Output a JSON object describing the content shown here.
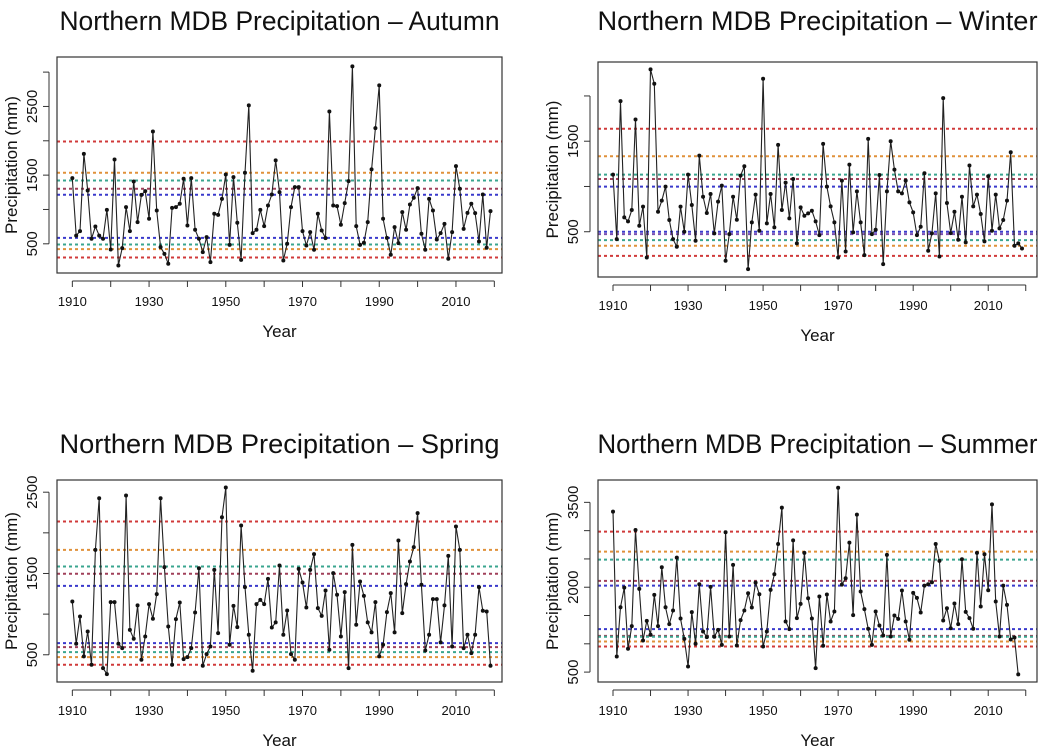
{
  "chart_data": [
    {
      "type": "line",
      "title": "Northern MDB Precipitation – Autumn",
      "xlabel": "Year",
      "ylabel": "Precipitation (mm)",
      "xlim": [
        1906,
        2022
      ],
      "ylim": [
        75,
        3220
      ],
      "grid": false,
      "xticks": [
        1910,
        1920,
        1930,
        1940,
        1950,
        1960,
        1970,
        1980,
        1990,
        2000,
        2010,
        2020
      ],
      "xtick_labels": [
        "1910",
        "",
        "1930",
        "",
        "1950",
        "",
        "1970",
        "",
        "1990",
        "",
        "2010",
        ""
      ],
      "yticks": [
        500,
        1000,
        1500,
        2000,
        2500,
        3000
      ],
      "ytick_labels": [
        "500",
        "",
        "1500",
        "",
        "2500",
        ""
      ],
      "reference_lines": [
        {
          "value": 1990,
          "color": "#D03A3A"
        },
        {
          "value": 1534,
          "color": "#E0913A"
        },
        {
          "value": 1422,
          "color": "#3AA58F"
        },
        {
          "value": 1301,
          "color": "#A0405A"
        },
        {
          "value": 1214,
          "color": "#3A3ACC"
        },
        {
          "value": 587,
          "color": "#3A3ACC"
        },
        {
          "value": 490,
          "color": "#3AA58F"
        },
        {
          "value": 422,
          "color": "#E0913A"
        },
        {
          "value": 300,
          "color": "#D03A3A"
        }
      ],
      "x": [
        1910,
        1911,
        1912,
        1913,
        1914,
        1915,
        1916,
        1917,
        1918,
        1919,
        1920,
        1921,
        1922,
        1923,
        1924,
        1925,
        1926,
        1927,
        1928,
        1929,
        1930,
        1931,
        1932,
        1933,
        1934,
        1935,
        1936,
        1937,
        1938,
        1939,
        1940,
        1941,
        1942,
        1943,
        1944,
        1945,
        1946,
        1947,
        1948,
        1949,
        1950,
        1951,
        1952,
        1953,
        1954,
        1955,
        1956,
        1957,
        1958,
        1959,
        1960,
        1961,
        1962,
        1963,
        1964,
        1965,
        1966,
        1967,
        1968,
        1969,
        1970,
        1971,
        1972,
        1973,
        1974,
        1975,
        1976,
        1977,
        1978,
        1979,
        1980,
        1981,
        1982,
        1983,
        1984,
        1985,
        1986,
        1987,
        1988,
        1989,
        1990,
        1991,
        1992,
        1993,
        1994,
        1995,
        1996,
        1997,
        1998,
        1999,
        2000,
        2001,
        2002,
        2003,
        2004,
        2005,
        2006,
        2007,
        2008,
        2009,
        2010,
        2011,
        2012,
        2013,
        2014,
        2015,
        2016,
        2017,
        2018,
        2019
      ],
      "values": [
        1456,
        620,
        685,
        1810,
        1277,
        573,
        752,
        620,
        573,
        995,
        417,
        1728,
        185,
        437,
        1034,
        685,
        1408,
        815,
        1213,
        1267,
        864,
        2136,
        985,
        451,
        354,
        209,
        1024,
        1034,
        1083,
        1447,
        767,
        1456,
        704,
        573,
        379,
        597,
        233,
        937,
        922,
        1155,
        1510,
        485,
        1471,
        806,
        267,
        1534,
        2515,
        655,
        704,
        995,
        757,
        1058,
        1218,
        1714,
        1252,
        257,
        500,
        1034,
        1325,
        1325,
        685,
        476,
        670,
        413,
        937,
        694,
        583,
        2427,
        1058,
        1049,
        777,
        1092,
        1413,
        3083,
        757,
        485,
        515,
        815,
        1583,
        2184,
        2806,
        864,
        587,
        340,
        743,
        510,
        961,
        704,
        1073,
        1170,
        1311,
        646,
        413,
        1155,
        985,
        563,
        655,
        791,
        282,
        670,
        1631,
        1301,
        718,
        951,
        1083,
        947,
        534,
        1218,
        442,
        976
      ]
    },
    {
      "type": "line",
      "title": "Northern MDB Precipitation – Winter",
      "xlabel": "Year",
      "ylabel": "Precipitation (mm)",
      "xlim": [
        1906,
        2023
      ],
      "ylim": [
        0,
        2375
      ],
      "grid": false,
      "xticks": [
        1910,
        1920,
        1930,
        1940,
        1950,
        1960,
        1970,
        1980,
        1990,
        2000,
        2010,
        2020
      ],
      "xtick_labels": [
        "1910",
        "",
        "1930",
        "",
        "1950",
        "",
        "1970",
        "",
        "1990",
        "",
        "2010",
        ""
      ],
      "yticks": [
        500,
        1000,
        1500,
        2000
      ],
      "ytick_labels": [
        "500",
        "",
        "1500",
        ""
      ],
      "reference_lines": [
        {
          "value": 1637,
          "color": "#D03A3A"
        },
        {
          "value": 1334,
          "color": "#E0913A"
        },
        {
          "value": 1131,
          "color": "#3AA58F"
        },
        {
          "value": 1083,
          "color": "#A0405A"
        },
        {
          "value": 998,
          "color": "#3A3ACC"
        },
        {
          "value": 500,
          "color": "#3A3ACC"
        },
        {
          "value": 474,
          "color": "#7A4FB0"
        },
        {
          "value": 408,
          "color": "#3AA58F"
        },
        {
          "value": 345,
          "color": "#E0913A"
        },
        {
          "value": 234,
          "color": "#D03A3A"
        }
      ],
      "x": [
        1910,
        1911,
        1912,
        1913,
        1914,
        1915,
        1916,
        1917,
        1918,
        1919,
        1920,
        1921,
        1922,
        1923,
        1924,
        1925,
        1926,
        1927,
        1928,
        1929,
        1930,
        1931,
        1932,
        1933,
        1934,
        1935,
        1936,
        1937,
        1938,
        1939,
        1940,
        1941,
        1942,
        1943,
        1944,
        1945,
        1946,
        1947,
        1948,
        1949,
        1950,
        1951,
        1952,
        1953,
        1954,
        1955,
        1956,
        1957,
        1958,
        1959,
        1960,
        1961,
        1962,
        1963,
        1964,
        1965,
        1966,
        1967,
        1968,
        1969,
        1970,
        1971,
        1972,
        1973,
        1974,
        1975,
        1976,
        1977,
        1978,
        1979,
        1980,
        1981,
        1982,
        1983,
        1984,
        1985,
        1986,
        1987,
        1988,
        1989,
        1990,
        1991,
        1992,
        1993,
        1994,
        1995,
        1996,
        1997,
        1998,
        1999,
        2000,
        2001,
        2002,
        2003,
        2004,
        2005,
        2006,
        2007,
        2008,
        2009,
        2010,
        2011,
        2012,
        2013,
        2014,
        2015,
        2016,
        2017,
        2018,
        2019
      ],
      "values": [
        1131,
        419,
        1943,
        659,
        614,
        740,
        1740,
        566,
        777,
        216,
        2293,
        2135,
        721,
        843,
        998,
        629,
        419,
        334,
        777,
        500,
        1131,
        795,
        400,
        1341,
        887,
        707,
        917,
        482,
        832,
        1009,
        179,
        474,
        887,
        633,
        1120,
        1223,
        87,
        603,
        910,
        511,
        2190,
        592,
        917,
        548,
        1459,
        740,
        1042,
        648,
        1083,
        371,
        769,
        677,
        703,
        732,
        614,
        463,
        1470,
        998,
        780,
        603,
        216,
        1065,
        282,
        1242,
        493,
        946,
        603,
        242,
        1526,
        474,
        522,
        1127,
        142,
        946,
        1500,
        1186,
        946,
        924,
        1065,
        825,
        714,
        463,
        555,
        1146,
        290,
        482,
        924,
        227,
        1976,
        817,
        485,
        721,
        411,
        887,
        382,
        1231,
        780,
        910,
        696,
        393,
        1113,
        511,
        910,
        537,
        629,
        843,
        1378,
        345,
        371,
        315
      ]
    },
    {
      "type": "line",
      "title": "Northern MDB Precipitation – Spring",
      "xlabel": "Year",
      "ylabel": "Precipitation (mm)",
      "xlim": [
        1906,
        2022
      ],
      "ylim": [
        165,
        2650
      ],
      "grid": false,
      "xticks": [
        1910,
        1920,
        1930,
        1940,
        1950,
        1960,
        1970,
        1980,
        1990,
        2000,
        2010,
        2020
      ],
      "xtick_labels": [
        "1910",
        "",
        "1930",
        "",
        "1950",
        "",
        "1970",
        "",
        "1990",
        "",
        "2010",
        ""
      ],
      "yticks": [
        500,
        1000,
        1500,
        2000,
        2500
      ],
      "ytick_labels": [
        "500",
        "",
        "1500",
        "",
        "2500"
      ],
      "reference_lines": [
        {
          "value": 2139,
          "color": "#D03A3A"
        },
        {
          "value": 1791,
          "color": "#E0913A"
        },
        {
          "value": 1586,
          "color": "#3AA58F"
        },
        {
          "value": 1496,
          "color": "#A0405A"
        },
        {
          "value": 1348,
          "color": "#3A3ACC"
        },
        {
          "value": 643,
          "color": "#3A3ACC"
        },
        {
          "value": 594,
          "color": "#A0405A"
        },
        {
          "value": 533,
          "color": "#3AA58F"
        },
        {
          "value": 471,
          "color": "#E0913A"
        },
        {
          "value": 377,
          "color": "#D03A3A"
        }
      ],
      "x": [
        1910,
        1911,
        1912,
        1913,
        1914,
        1915,
        1916,
        1917,
        1918,
        1919,
        1920,
        1921,
        1922,
        1923,
        1924,
        1925,
        1926,
        1927,
        1928,
        1929,
        1930,
        1931,
        1932,
        1933,
        1934,
        1935,
        1936,
        1937,
        1938,
        1939,
        1940,
        1941,
        1942,
        1943,
        1944,
        1945,
        1946,
        1947,
        1948,
        1949,
        1950,
        1951,
        1952,
        1953,
        1954,
        1955,
        1956,
        1957,
        1958,
        1959,
        1960,
        1961,
        1962,
        1963,
        1964,
        1965,
        1966,
        1967,
        1968,
        1969,
        1970,
        1971,
        1972,
        1973,
        1974,
        1975,
        1976,
        1977,
        1978,
        1979,
        1980,
        1981,
        1982,
        1983,
        1984,
        1985,
        1986,
        1987,
        1988,
        1989,
        1990,
        1991,
        1992,
        1993,
        1994,
        1995,
        1996,
        1997,
        1998,
        1999,
        2000,
        2001,
        2002,
        2003,
        2004,
        2005,
        2006,
        2007,
        2008,
        2009,
        2010,
        2011,
        2012,
        2013,
        2014,
        2015,
        2016,
        2017,
        2018,
        2019
      ],
      "values": [
        1156,
        635,
        971,
        480,
        787,
        377,
        1791,
        2426,
        336,
        262,
        1147,
        1147,
        635,
        582,
        2459,
        807,
        697,
        1107,
        439,
        725,
        1123,
        943,
        1246,
        2426,
        1578,
        848,
        377,
        939,
        1143,
        447,
        471,
        582,
        1020,
        1565,
        365,
        508,
        602,
        1545,
        766,
        2192,
        2557,
        623,
        1102,
        840,
        2090,
        1332,
        746,
        303,
        1123,
        1176,
        1123,
        1434,
        836,
        898,
        1598,
        746,
        1045,
        508,
        439,
        1557,
        1389,
        1082,
        1545,
        1738,
        1074,
        979,
        1291,
        561,
        1504,
        1238,
        725,
        1270,
        336,
        1852,
        869,
        1402,
        1225,
        898,
        775,
        1147,
        480,
        623,
        1025,
        1258,
        775,
        1906,
        1012,
        1369,
        1647,
        1824,
        2242,
        1361,
        553,
        746,
        1184,
        1184,
        652,
        1107,
        1717,
        602,
        2078,
        1791,
        582,
        746,
        520,
        746,
        1332,
        1041,
        1033,
        365
      ]
    },
    {
      "type": "line",
      "title": "Northern MDB Precipitation – Summer",
      "xlabel": "Year",
      "ylabel": "Precipitation (mm)",
      "xlim": [
        1906,
        2023
      ],
      "ylim": [
        325,
        3895
      ],
      "grid": false,
      "xticks": [
        1910,
        1920,
        1930,
        1940,
        1950,
        1960,
        1970,
        1980,
        1990,
        2000,
        2010,
        2020
      ],
      "xtick_labels": [
        "1910",
        "",
        "1930",
        "",
        "1950",
        "",
        "1970",
        "",
        "1990",
        "",
        "2010",
        ""
      ],
      "yticks": [
        500,
        1000,
        1500,
        2000,
        2500,
        3000,
        3500
      ],
      "ytick_labels": [
        "500",
        "",
        "",
        "2000",
        "",
        "",
        "3500"
      ],
      "reference_lines": [
        {
          "value": 2982,
          "color": "#D03A3A"
        },
        {
          "value": 2629,
          "color": "#E0913A"
        },
        {
          "value": 2488,
          "color": "#3AA58F"
        },
        {
          "value": 2112,
          "color": "#A0405A"
        },
        {
          "value": 2029,
          "color": "#3A3ACC"
        },
        {
          "value": 1259,
          "color": "#3A3ACC"
        },
        {
          "value": 1140,
          "color": "#A0405A"
        },
        {
          "value": 1125,
          "color": "#3AA58F"
        },
        {
          "value": 1041,
          "color": "#E0913A"
        },
        {
          "value": 953,
          "color": "#D03A3A"
        }
      ],
      "x": [
        1910,
        1911,
        1912,
        1913,
        1914,
        1915,
        1916,
        1917,
        1918,
        1919,
        1920,
        1921,
        1922,
        1923,
        1924,
        1925,
        1926,
        1927,
        1928,
        1929,
        1930,
        1931,
        1932,
        1933,
        1934,
        1935,
        1936,
        1937,
        1938,
        1939,
        1940,
        1941,
        1942,
        1943,
        1944,
        1945,
        1946,
        1947,
        1948,
        1949,
        1950,
        1951,
        1952,
        1953,
        1954,
        1955,
        1956,
        1957,
        1958,
        1959,
        1960,
        1961,
        1962,
        1963,
        1964,
        1965,
        1966,
        1967,
        1968,
        1969,
        1970,
        1971,
        1972,
        1973,
        1974,
        1975,
        1976,
        1977,
        1978,
        1979,
        1980,
        1981,
        1982,
        1983,
        1984,
        1985,
        1986,
        1987,
        1988,
        1989,
        1990,
        1991,
        1992,
        1993,
        1994,
        1995,
        1996,
        1997,
        1998,
        1999,
        2000,
        2001,
        2002,
        2003,
        2004,
        2005,
        2006,
        2007,
        2008,
        2009,
        2010,
        2011,
        2012,
        2013,
        2014,
        2015,
        2016,
        2017,
        2018
      ],
      "values": [
        3335,
        776,
        1647,
        1994,
        912,
        1312,
        3012,
        1971,
        1059,
        1406,
        1159,
        1865,
        1312,
        2353,
        1647,
        1347,
        1588,
        2523,
        1447,
        1088,
        600,
        1559,
        1000,
        2053,
        1218,
        1118,
        2006,
        1124,
        1247,
        982,
        2971,
        1129,
        2394,
        971,
        1418,
        1588,
        1894,
        1641,
        2082,
        1876,
        953,
        1218,
        1953,
        2229,
        2765,
        3406,
        1394,
        1259,
        2829,
        1453,
        1706,
        2606,
        1806,
        1447,
        571,
        1835,
        965,
        1871,
        1394,
        1571,
        3759,
        2047,
        2159,
        2788,
        1506,
        3282,
        1924,
        1612,
        1265,
        982,
        1571,
        1324,
        1147,
        2571,
        1129,
        1500,
        1441,
        1941,
        1394,
        1071,
        1900,
        1812,
        1553,
        2029,
        2053,
        2088,
        2765,
        2465,
        1412,
        1629,
        1276,
        1712,
        1347,
        2494,
        1565,
        1453,
        1265,
        2606,
        1659,
        2582,
        1947,
        3465,
        1747,
        1129,
        2029,
        1688,
        1076,
        1112,
        459
      ]
    }
  ]
}
